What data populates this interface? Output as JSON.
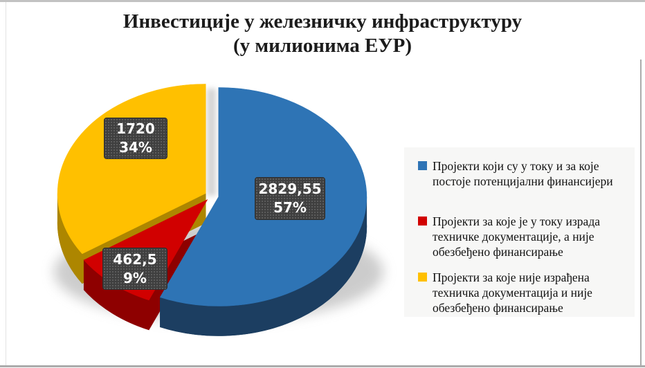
{
  "title": {
    "line1": "Инвестиције у железничку инфраструктуру",
    "line2": "(у милионима ЕУР)"
  },
  "chart_data": {
    "type": "pie",
    "title": "Инвестиције у железничку инфраструктуру (у милионима ЕУР)",
    "style": "3d-exploded-pie",
    "legend_position": "right",
    "slices": [
      {
        "label": "Пројекти који су у току и за које постоје потенцијални финансијери",
        "value": 2829.55,
        "value_text": "2829,55",
        "percent": 57,
        "percent_text": "57%",
        "color": "#2E74B5",
        "side_color": "#1C3E61"
      },
      {
        "label": "Пројекти за које је у току израда техничке документације, а није обезбеђено финансирање",
        "value": 462.5,
        "value_text": "462,5",
        "percent": 9,
        "percent_text": "9%",
        "color": "#D10000",
        "side_color": "#8E0000"
      },
      {
        "label": "Пројекти за које није израђена техничка документација и није обезбеђено финансирање",
        "value": 1720,
        "value_text": "1720",
        "percent": 34,
        "percent_text": "34%",
        "color": "#FFC000",
        "side_color": "#AD8600"
      }
    ],
    "data_label_box": {
      "bg": "#3F3F3F",
      "text_color": "#FFFFFF"
    },
    "legend_bg": "#F7F7F6"
  }
}
